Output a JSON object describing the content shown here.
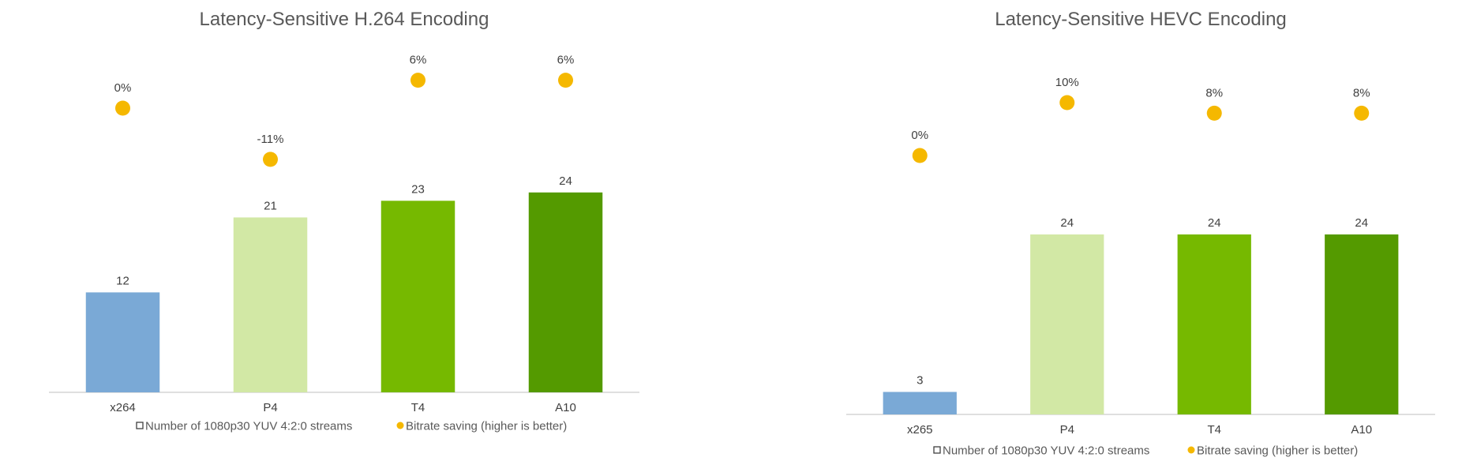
{
  "colors": {
    "title": "#595959",
    "text": "#404040",
    "axis": "#bfbfbf",
    "dot": "#f5b800",
    "bars": [
      "#7aa9d6",
      "#d2e8a5",
      "#76b900",
      "#549a00"
    ]
  },
  "legend": {
    "bar_label": "Number of 1080p30 YUV 4:2:0 streams",
    "dot_label": "Bitrate saving (higher is better)"
  },
  "chart_data": [
    {
      "type": "bar",
      "title": "Latency-Sensitive H.264 Encoding",
      "categories": [
        "x264",
        "P4",
        "T4",
        "A10"
      ],
      "series": [
        {
          "name": "Number of 1080p30 YUV 4:2:0 streams",
          "type": "bar",
          "values": [
            12,
            21,
            23,
            24
          ],
          "labels": [
            "12",
            "21",
            "23",
            "24"
          ]
        },
        {
          "name": "Bitrate saving (higher is better)",
          "type": "scatter",
          "values": [
            0,
            -11,
            6,
            6
          ],
          "labels": [
            "0%",
            "-11%",
            "6%",
            "6%"
          ]
        }
      ],
      "ylim": [
        0,
        45
      ],
      "y2lim": [
        -30,
        10
      ],
      "grid": false,
      "legend_position": "bottom"
    },
    {
      "type": "bar",
      "title": "Latency-Sensitive HEVC Encoding",
      "categories": [
        "x265",
        "P4",
        "T4",
        "A10"
      ],
      "series": [
        {
          "name": "Number of 1080p30 YUV 4:2:0 streams",
          "type": "bar",
          "values": [
            3,
            24,
            24,
            24
          ],
          "labels": [
            "3",
            "24",
            "24",
            "24"
          ]
        },
        {
          "name": "Bitrate saving (higher is better)",
          "type": "scatter",
          "values": [
            0,
            10,
            8,
            8
          ],
          "labels": [
            "0%",
            "10%",
            "8%",
            "8%"
          ]
        }
      ],
      "ylim": [
        0,
        35
      ],
      "y2lim": [
        -20,
        15
      ],
      "grid": false,
      "legend_position": "bottom"
    }
  ]
}
